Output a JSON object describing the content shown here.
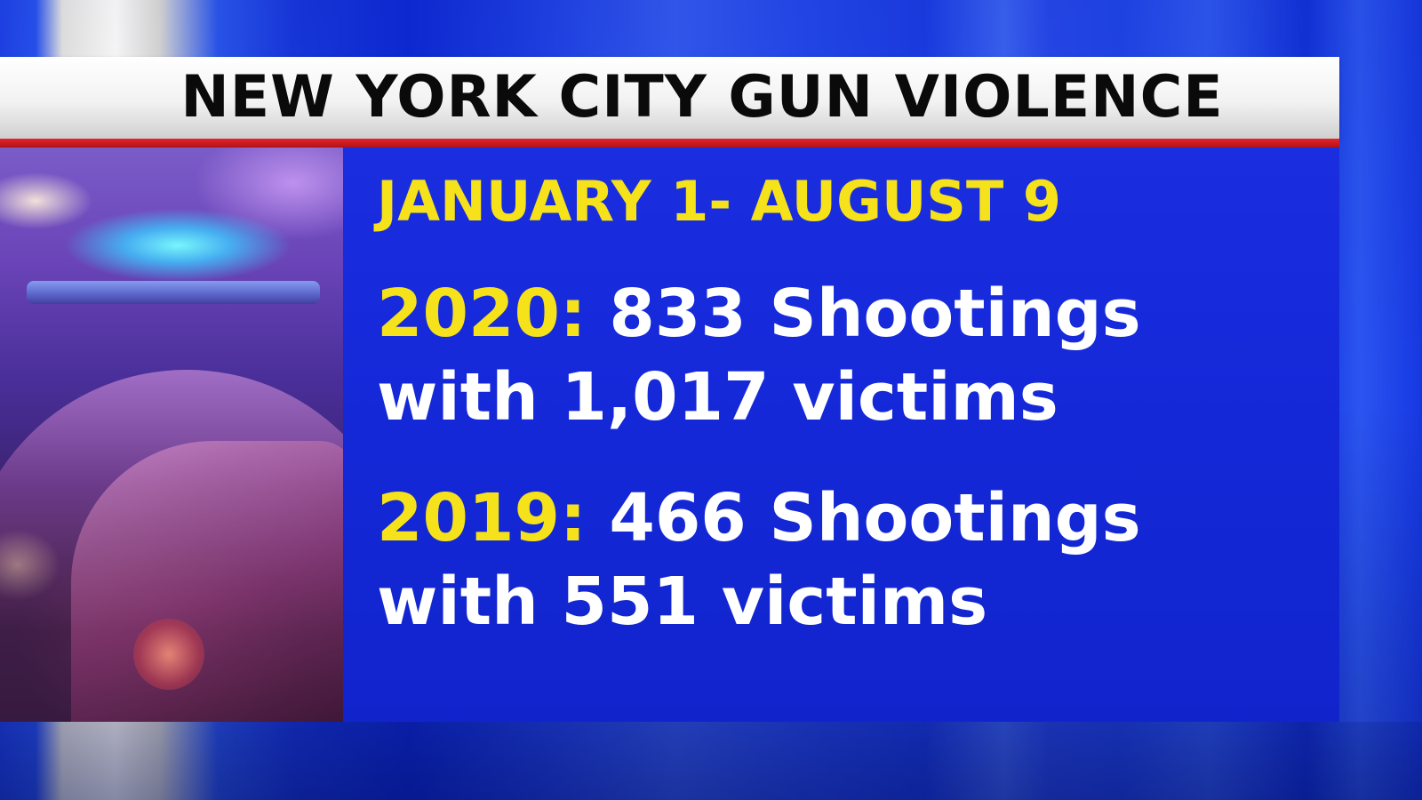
{
  "header": {
    "title": "NEW YORK CITY GUN VIOLENCE"
  },
  "panel": {
    "date_range": "JANUARY 1- AUGUST 9",
    "stats": [
      {
        "year_label": "2020:",
        "line1": "833 Shootings",
        "line2": "with 1,017 victims"
      },
      {
        "year_label": "2019:",
        "line1": "466 Shootings",
        "line2": "with 551 victims"
      }
    ]
  },
  "colors": {
    "accent_yellow": "#f6e21a",
    "panel_blue": "#1428d8",
    "rule_red": "#d01a22",
    "title_text": "#0a0a0a"
  },
  "image": {
    "photo_icon": "police-car-lightbar-photo"
  }
}
